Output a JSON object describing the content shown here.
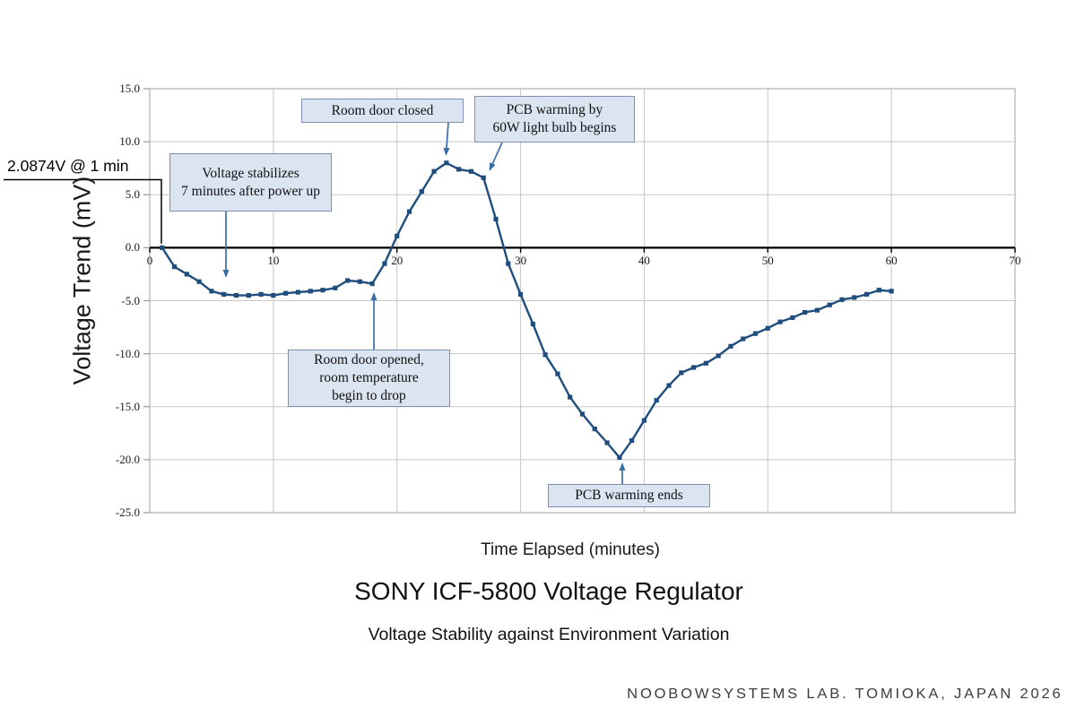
{
  "callout": {
    "text": "2.0874V @ 1 min",
    "target": {
      "t": 1,
      "v": 0.0
    }
  },
  "watermark": "NOOBOWSYSTEMS LAB. TOMIOKA, JAPAN 2026",
  "chart_data": {
    "type": "line",
    "title": "SONY ICF-5800 Voltage Regulator",
    "subtitle": "Voltage Stability against Environment Variation",
    "xlabel": "Time Elapsed (minutes)",
    "ylabel": "Voltage Trend (mV)",
    "xlim": [
      0,
      70
    ],
    "ylim": [
      -25,
      15
    ],
    "xticks": {
      "values": [
        0,
        10,
        20,
        30,
        40,
        50,
        60,
        70
      ],
      "labels": [
        "0",
        "10",
        "20",
        "30",
        "40",
        "50",
        "60",
        "70"
      ]
    },
    "yticks": {
      "values": [
        15,
        10,
        5,
        0,
        -5,
        -10,
        -15,
        -20,
        -25
      ],
      "labels": [
        "15.0",
        "10.0",
        "5.0",
        "0.0",
        "-5.0",
        "-10.0",
        "-15.0",
        "-20.0",
        "-25.0"
      ]
    },
    "grid": true,
    "legend": "none",
    "series": [
      {
        "name": "voltage-trend-mv",
        "marker": "square",
        "x": [
          1,
          2,
          3,
          4,
          5,
          6,
          7,
          8,
          9,
          10,
          11,
          12,
          13,
          14,
          15,
          16,
          17,
          18,
          19,
          20,
          21,
          22,
          23,
          24,
          25,
          26,
          27,
          28,
          29,
          30,
          31,
          32,
          33,
          34,
          35,
          36,
          37,
          38,
          39,
          40,
          41,
          42,
          43,
          44,
          45,
          46,
          47,
          48,
          49,
          50,
          51,
          52,
          53,
          54,
          55,
          56,
          57,
          58,
          59,
          60
        ],
        "y": [
          0.0,
          -1.8,
          -2.5,
          -3.2,
          -4.1,
          -4.4,
          -4.5,
          -4.5,
          -4.4,
          -4.5,
          -4.3,
          -4.2,
          -4.1,
          -4.0,
          -3.8,
          -3.1,
          -3.2,
          -3.4,
          -1.5,
          1.1,
          3.4,
          5.3,
          7.2,
          8.0,
          7.4,
          7.2,
          6.6,
          2.7,
          -1.5,
          -4.4,
          -7.2,
          -10.1,
          -11.9,
          -14.1,
          -15.7,
          -17.1,
          -18.4,
          -19.8,
          -18.2,
          -16.3,
          -14.4,
          -13.0,
          -11.8,
          -11.3,
          -10.9,
          -10.2,
          -9.3,
          -8.6,
          -8.1,
          -7.6,
          -7.0,
          -6.6,
          -6.1,
          -5.9,
          -5.4,
          -4.9,
          -4.7,
          -4.4,
          -4.0,
          -4.1
        ]
      }
    ],
    "annotations": [
      {
        "id": "voltage-stabilizes",
        "text": "Voltage stabilizes\n7 minutes after power up",
        "target": {
          "t": 7,
          "v": -4.5
        }
      },
      {
        "id": "room-door-closed",
        "text": "Room door closed",
        "target": {
          "t": 24,
          "v": 8.0
        }
      },
      {
        "id": "pcb-warming-begins",
        "text": "PCB warming by\n60W light bulb begins",
        "target": {
          "t": 27,
          "v": 6.6
        }
      },
      {
        "id": "room-door-opened",
        "text": "Room door opened,\nroom temperature\nbegin to drop",
        "target": {
          "t": 18,
          "v": -3.4
        }
      },
      {
        "id": "pcb-warming-ends",
        "text": "PCB warming ends",
        "target": {
          "t": 38,
          "v": -19.8
        }
      }
    ],
    "colors": {
      "series": "#1f4e7e",
      "arrow": "#3a6ea8",
      "grid": "#c8c8c8",
      "plot_border": "#b0b0b0",
      "zero_line": "#000000",
      "box_fill": "#dbe5f1",
      "box_border": "#7d91ad",
      "tick_overhang": "#9a9a9a"
    }
  }
}
